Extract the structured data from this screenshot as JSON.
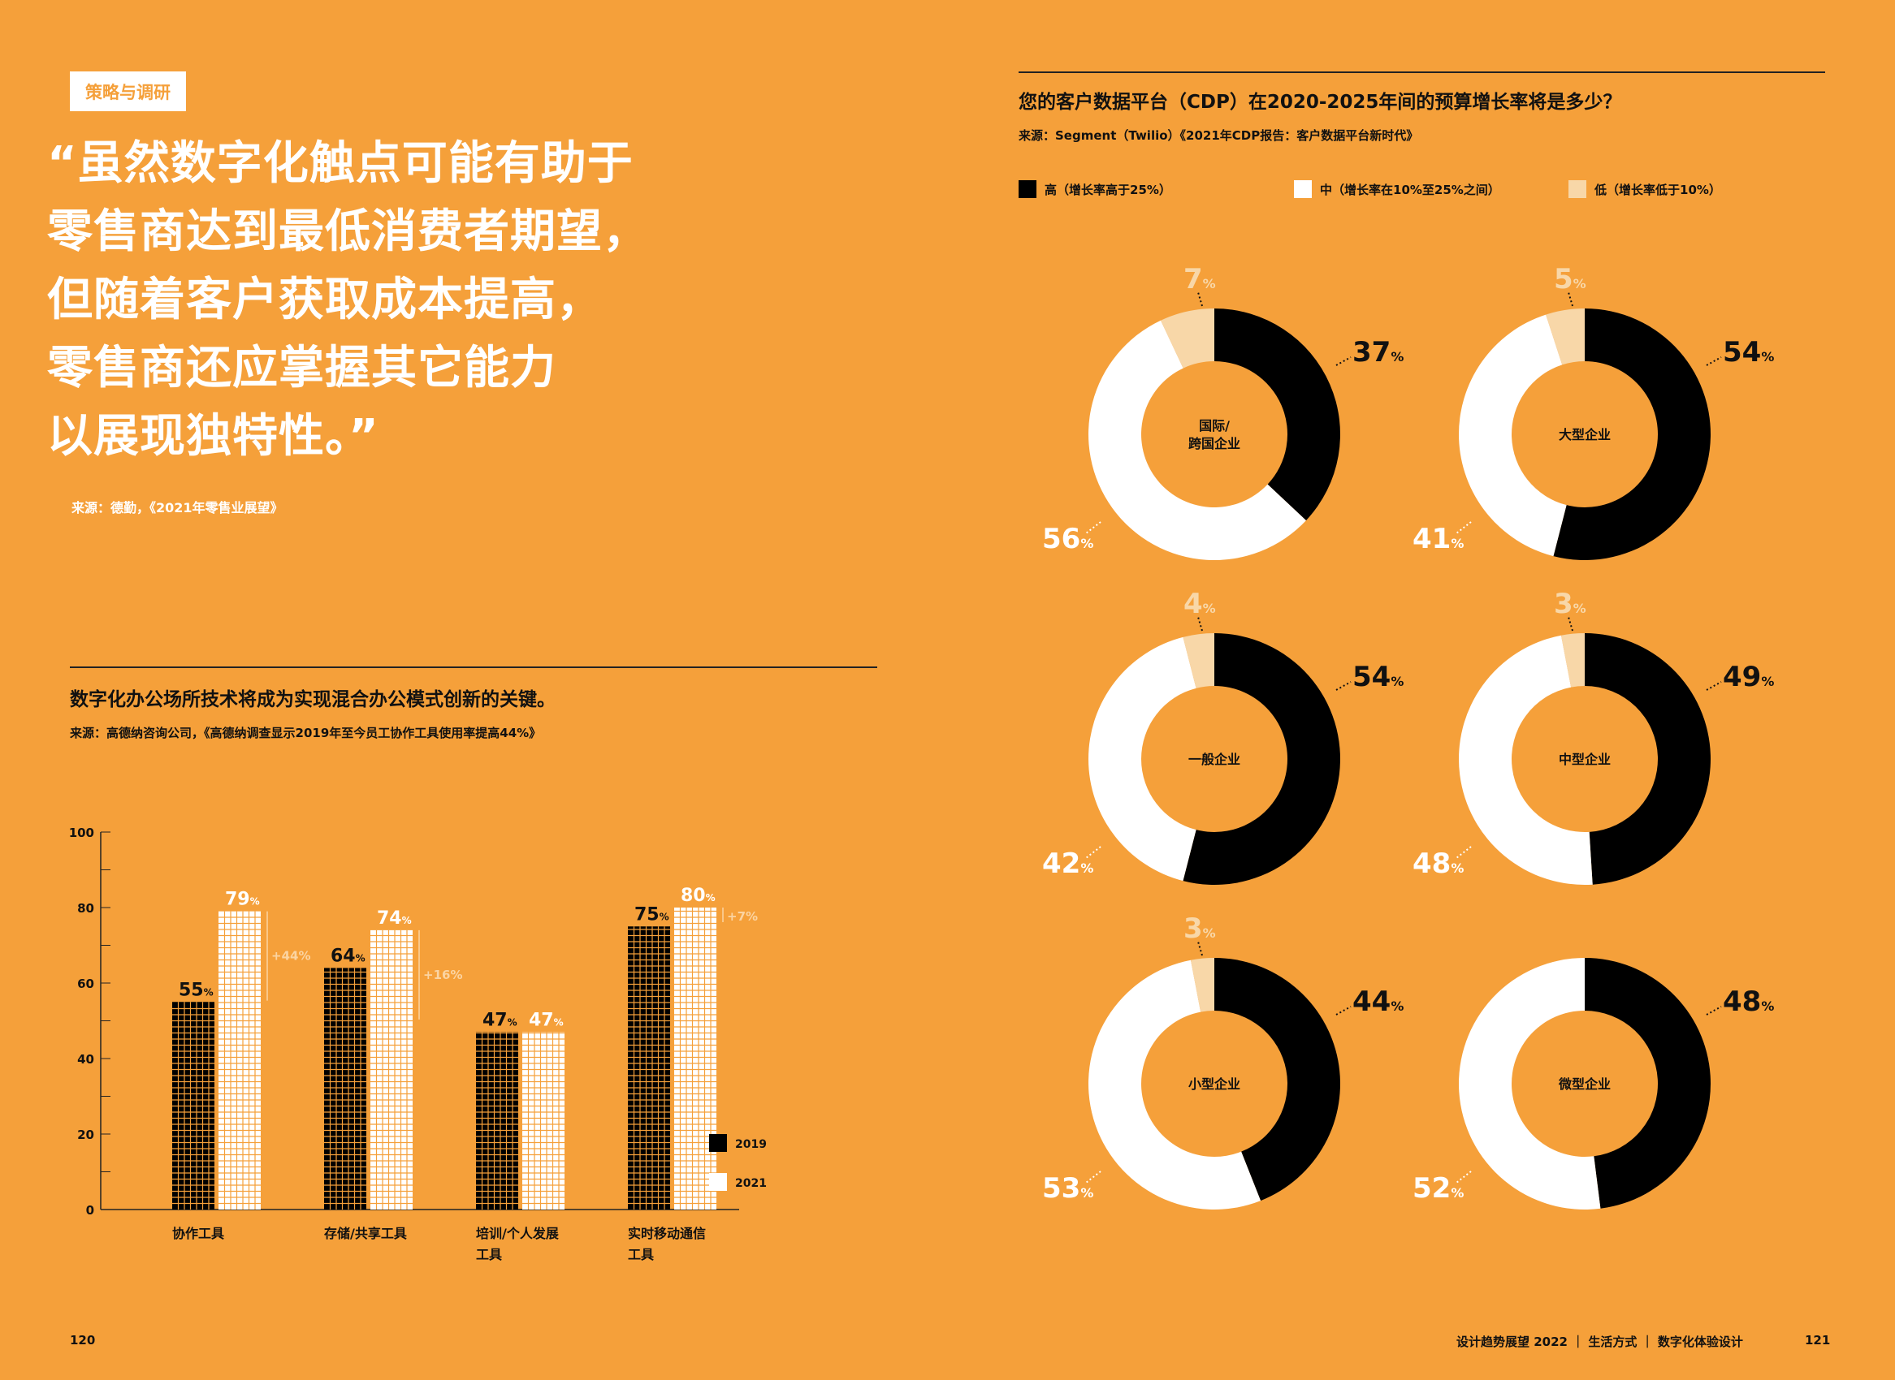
{
  "left_page": {
    "tag": "策略与调研",
    "quote": "“虽然数字化触点可能有助于\n零售商达到最低消费者期望，\n但随着客户获取成本提高，\n零售商还应掌握其它能力\n以展现独特性。”",
    "quote_source": "来源：德勤，《2021年零售业展望》",
    "bar_heading": "数字化办公场所技术将成为实现混合办公模式创新的关键。",
    "bar_source": "来源：高德纳咨询公司，《高德纳调查显示2019年至今员工协作工具使用率提高44%》",
    "page_number": "120"
  },
  "right_page": {
    "heading": "您的客户数据平台（CDP）在2020-2025年间的预算增长率将是多少？",
    "source": "来源：Segment（Twilio）《2021年CDP报告：客户数据平台新时代》",
    "footer": "设计趋势展望 2022 ｜ 生活方式 ｜ 数字化体验设计",
    "page_number": "121"
  },
  "colors": {
    "background": "#f5a03a",
    "high": "#000000",
    "medium": "#ffffff",
    "low": "#f8d7a8"
  },
  "chart_data": [
    {
      "type": "bar",
      "categories": [
        "协作工具",
        "存储/共享工具",
        "培训/个人发展工具",
        "实时移动通信工具"
      ],
      "category_lines": [
        [
          "协作工具"
        ],
        [
          "存储/共享工具"
        ],
        [
          "培训/个人发展",
          "工具"
        ],
        [
          "实时移动通信",
          "工具"
        ]
      ],
      "series": [
        {
          "name": "2019",
          "values": [
            55,
            64,
            47,
            75
          ],
          "color": "#000000"
        },
        {
          "name": "2021",
          "values": [
            79,
            74,
            47,
            80
          ],
          "color": "#ffffff"
        }
      ],
      "change_labels": [
        "+44%",
        "+16%",
        "",
        "+7%"
      ],
      "y_ticks": [
        0,
        20,
        40,
        60,
        80,
        100
      ],
      "ylim": [
        0,
        100
      ],
      "legend_position": "right"
    },
    {
      "type": "pie",
      "subtype": "donut",
      "legend": [
        {
          "label": "高（增长率高于25%）",
          "color": "#000000"
        },
        {
          "label": "中（增长率在10%至25%之间）",
          "color": "#ffffff"
        },
        {
          "label": "低（增长率低于10%）",
          "color": "#f8d7a8"
        }
      ],
      "legend_position": "top",
      "charts": [
        {
          "label": "国际/跨国企业",
          "label_lines": [
            "国际/",
            "跨国企业"
          ],
          "high": 37,
          "medium": 56,
          "low": 7
        },
        {
          "label": "大型企业",
          "label_lines": [
            "大型企业"
          ],
          "high": 54,
          "medium": 41,
          "low": 5
        },
        {
          "label": "一般企业",
          "label_lines": [
            "一般企业"
          ],
          "high": 54,
          "medium": 42,
          "low": 4
        },
        {
          "label": "中型企业",
          "label_lines": [
            "中型企业"
          ],
          "high": 49,
          "medium": 48,
          "low": 3
        },
        {
          "label": "小型企业",
          "label_lines": [
            "小型企业"
          ],
          "high": 44,
          "medium": 53,
          "low": 3
        },
        {
          "label": "微型企业",
          "label_lines": [
            "微型企业"
          ],
          "high": 48,
          "medium": 52,
          "low": 0
        }
      ]
    }
  ]
}
